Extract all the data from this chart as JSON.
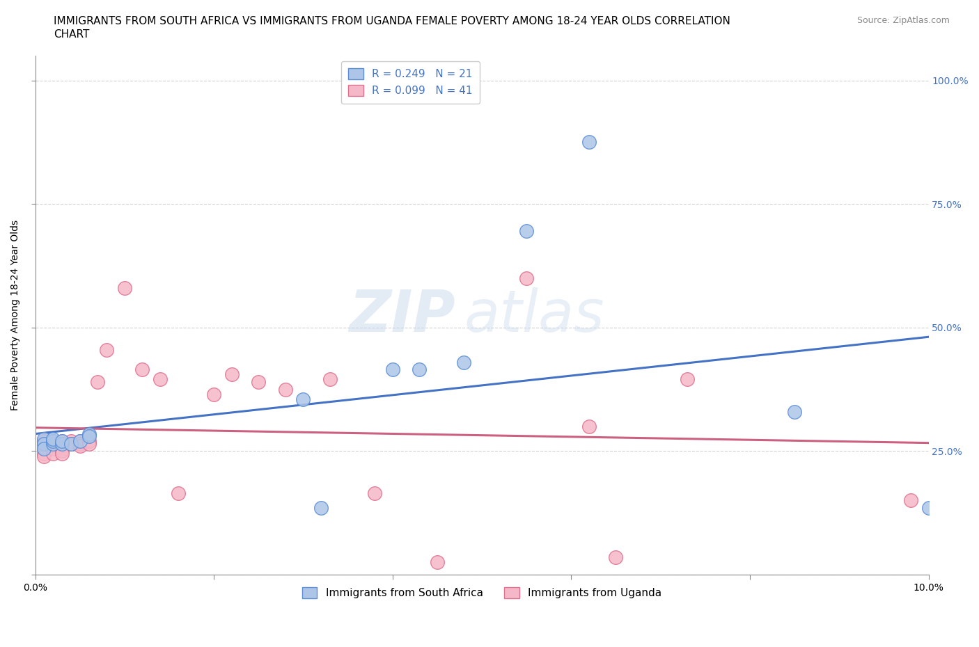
{
  "title_line1": "IMMIGRANTS FROM SOUTH AFRICA VS IMMIGRANTS FROM UGANDA FEMALE POVERTY AMONG 18-24 YEAR OLDS CORRELATION",
  "title_line2": "CHART",
  "source": "Source: ZipAtlas.com",
  "ylabel": "Female Poverty Among 18-24 Year Olds",
  "xlim": [
    0.0,
    0.1
  ],
  "ylim": [
    0.0,
    1.05
  ],
  "xticks": [
    0.0,
    0.02,
    0.04,
    0.06,
    0.08,
    0.1
  ],
  "xticklabels": [
    "0.0%",
    "",
    "",
    "",
    "",
    "10.0%"
  ],
  "yticks": [
    0.0,
    0.25,
    0.5,
    0.75,
    1.0
  ],
  "yticklabels": [
    "",
    "25.0%",
    "50.0%",
    "75.0%",
    "100.0%"
  ],
  "blue_R": 0.249,
  "blue_N": 21,
  "pink_R": 0.099,
  "pink_N": 41,
  "blue_color": "#adc6e8",
  "pink_color": "#f5b8c8",
  "blue_edge_color": "#5b8ed6",
  "pink_edge_color": "#e07090",
  "blue_line_color": "#4472c4",
  "pink_line_color": "#cc6080",
  "watermark": "ZIPatlas",
  "grid_color": "#d0d0d0",
  "blue_scatter_x": [
    0.001,
    0.001,
    0.001,
    0.002,
    0.002,
    0.002,
    0.003,
    0.003,
    0.004,
    0.005,
    0.006,
    0.006,
    0.03,
    0.032,
    0.04,
    0.043,
    0.048,
    0.055,
    0.062,
    0.085,
    0.1
  ],
  "blue_scatter_y": [
    0.275,
    0.265,
    0.255,
    0.265,
    0.27,
    0.275,
    0.265,
    0.27,
    0.265,
    0.27,
    0.285,
    0.28,
    0.355,
    0.135,
    0.415,
    0.415,
    0.43,
    0.695,
    0.875,
    0.33,
    0.135
  ],
  "pink_scatter_x": [
    0.001,
    0.001,
    0.001,
    0.001,
    0.001,
    0.002,
    0.002,
    0.002,
    0.002,
    0.002,
    0.003,
    0.003,
    0.003,
    0.003,
    0.003,
    0.003,
    0.004,
    0.004,
    0.005,
    0.005,
    0.005,
    0.006,
    0.006,
    0.007,
    0.008,
    0.01,
    0.012,
    0.014,
    0.016,
    0.02,
    0.022,
    0.025,
    0.028,
    0.033,
    0.038,
    0.045,
    0.055,
    0.062,
    0.065,
    0.073,
    0.098
  ],
  "pink_scatter_y": [
    0.27,
    0.265,
    0.255,
    0.245,
    0.24,
    0.27,
    0.265,
    0.26,
    0.255,
    0.245,
    0.27,
    0.265,
    0.26,
    0.255,
    0.25,
    0.245,
    0.27,
    0.265,
    0.27,
    0.265,
    0.26,
    0.27,
    0.265,
    0.39,
    0.455,
    0.58,
    0.415,
    0.395,
    0.165,
    0.365,
    0.405,
    0.39,
    0.375,
    0.395,
    0.165,
    0.025,
    0.6,
    0.3,
    0.035,
    0.395,
    0.15
  ],
  "legend_label_blue": "Immigrants from South Africa",
  "legend_label_pink": "Immigrants from Uganda",
  "title_fontsize": 11,
  "axis_label_fontsize": 10,
  "tick_fontsize": 10,
  "legend_fontsize": 11,
  "right_ytick_color": "#4472c4"
}
